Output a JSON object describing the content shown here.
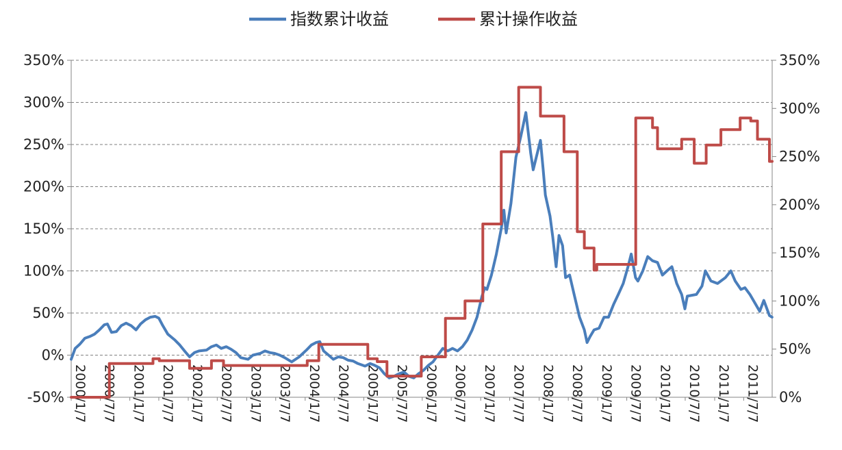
{
  "chart_data": {
    "type": "line",
    "title": "",
    "colors": {
      "index": "#4a7ebb",
      "operation": "#be4b48"
    },
    "legend": {
      "position": "top",
      "entries": [
        "指数累计收益",
        "累计操作收益"
      ]
    },
    "grid": {
      "horizontal": true,
      "style": "dashed"
    },
    "y_left": {
      "ylim": [
        -0.5,
        3.5
      ],
      "ticks": [
        -0.5,
        0,
        0.5,
        1,
        1.5,
        2,
        2.5,
        3,
        3.5
      ],
      "tick_labels": [
        "-50%",
        "0%",
        "50%",
        "100%",
        "150%",
        "200%",
        "250%",
        "300%",
        "350%"
      ]
    },
    "y_right": {
      "ylim": [
        0,
        3.5
      ],
      "ticks": [
        0,
        0.5,
        1,
        1.5,
        2,
        2.5,
        3,
        3.5
      ],
      "tick_labels": [
        "0%",
        "50%",
        "100%",
        "150%",
        "200%",
        "250%",
        "300%",
        "350%"
      ]
    },
    "x_axis": {
      "xlim": [
        "2000-01-07",
        "2012-01-01"
      ],
      "tick_dates": [
        "2000-01-07",
        "2000-07-07",
        "2001-01-07",
        "2001-07-07",
        "2002-01-07",
        "2002-07-07",
        "2003-01-07",
        "2003-07-07",
        "2004-01-07",
        "2004-07-07",
        "2005-01-07",
        "2005-07-07",
        "2006-01-07",
        "2006-07-07",
        "2007-01-07",
        "2007-07-07",
        "2008-01-07",
        "2008-07-07",
        "2009-01-07",
        "2009-07-07",
        "2010-01-07",
        "2010-07-07",
        "2011-01-07",
        "2011-07-07"
      ],
      "tick_labels": [
        "2000/1/7",
        "2000/7/7",
        "2001/1/7",
        "2001/7/7",
        "2002/1/7",
        "2002/7/7",
        "2003/1/7",
        "2003/7/7",
        "2004/1/7",
        "2004/7/7",
        "2005/1/7",
        "2005/7/7",
        "2006/1/7",
        "2006/7/7",
        "2007/1/7",
        "2007/7/7",
        "2008/1/7",
        "2008/7/7",
        "2009/1/7",
        "2009/7/7",
        "2010/1/7",
        "2010/7/7",
        "2011/1/7",
        "2011/7/7"
      ]
    },
    "series": [
      {
        "name": "指数累计收益",
        "axis": "left",
        "points": [
          [
            "2000-01-07",
            -0.05
          ],
          [
            "2000-02-01",
            0.08
          ],
          [
            "2000-03-01",
            0.13
          ],
          [
            "2000-04-01",
            0.2
          ],
          [
            "2000-05-01",
            0.22
          ],
          [
            "2000-06-01",
            0.25
          ],
          [
            "2000-07-01",
            0.3
          ],
          [
            "2000-08-01",
            0.36
          ],
          [
            "2000-08-20",
            0.37
          ],
          [
            "2000-09-15",
            0.27
          ],
          [
            "2000-10-15",
            0.28
          ],
          [
            "2000-11-15",
            0.35
          ],
          [
            "2000-12-15",
            0.38
          ],
          [
            "2001-01-15",
            0.35
          ],
          [
            "2001-02-15",
            0.3
          ],
          [
            "2001-03-15",
            0.37
          ],
          [
            "2001-04-15",
            0.42
          ],
          [
            "2001-05-15",
            0.45
          ],
          [
            "2001-06-15",
            0.46
          ],
          [
            "2001-07-07",
            0.44
          ],
          [
            "2001-08-01",
            0.35
          ],
          [
            "2001-09-01",
            0.25
          ],
          [
            "2001-10-15",
            0.18
          ],
          [
            "2001-11-15",
            0.12
          ],
          [
            "2001-12-15",
            0.05
          ],
          [
            "2002-01-15",
            -0.02
          ],
          [
            "2002-02-15",
            0.03
          ],
          [
            "2002-03-15",
            0.05
          ],
          [
            "2002-05-01",
            0.06
          ],
          [
            "2002-06-01",
            0.1
          ],
          [
            "2002-07-01",
            0.12
          ],
          [
            "2002-08-01",
            0.08
          ],
          [
            "2002-09-01",
            0.1
          ],
          [
            "2002-10-01",
            0.07
          ],
          [
            "2002-11-01",
            0.03
          ],
          [
            "2002-12-01",
            -0.03
          ],
          [
            "2003-01-15",
            -0.05
          ],
          [
            "2003-02-15",
            0.0
          ],
          [
            "2003-04-01",
            0.02
          ],
          [
            "2003-05-01",
            0.05
          ],
          [
            "2003-06-01",
            0.03
          ],
          [
            "2003-07-01",
            0.02
          ],
          [
            "2003-08-01",
            0.0
          ],
          [
            "2003-09-01",
            -0.03
          ],
          [
            "2003-10-15",
            -0.08
          ],
          [
            "2003-12-01",
            -0.02
          ],
          [
            "2004-01-15",
            0.06
          ],
          [
            "2004-02-15",
            0.12
          ],
          [
            "2004-03-15",
            0.15
          ],
          [
            "2004-04-07",
            0.16
          ],
          [
            "2004-05-01",
            0.05
          ],
          [
            "2004-06-01",
            0.0
          ],
          [
            "2004-07-01",
            -0.05
          ],
          [
            "2004-08-01",
            -0.02
          ],
          [
            "2004-09-01",
            -0.03
          ],
          [
            "2004-10-01",
            -0.06
          ],
          [
            "2004-11-01",
            -0.07
          ],
          [
            "2004-12-01",
            -0.1
          ],
          [
            "2005-01-15",
            -0.13
          ],
          [
            "2005-02-15",
            -0.1
          ],
          [
            "2005-03-15",
            -0.12
          ],
          [
            "2005-04-15",
            -0.15
          ],
          [
            "2005-05-15",
            -0.22
          ],
          [
            "2005-06-15",
            -0.27
          ],
          [
            "2005-07-15",
            -0.25
          ],
          [
            "2005-08-15",
            -0.22
          ],
          [
            "2005-09-15",
            -0.2
          ],
          [
            "2005-10-15",
            -0.25
          ],
          [
            "2005-11-15",
            -0.27
          ],
          [
            "2005-12-15",
            -0.22
          ],
          [
            "2006-01-15",
            -0.18
          ],
          [
            "2006-02-15",
            -0.12
          ],
          [
            "2006-03-15",
            -0.08
          ],
          [
            "2006-04-15",
            0.0
          ],
          [
            "2006-05-15",
            0.08
          ],
          [
            "2006-06-15",
            0.05
          ],
          [
            "2006-07-15",
            0.08
          ],
          [
            "2006-08-15",
            0.05
          ],
          [
            "2006-09-15",
            0.1
          ],
          [
            "2006-10-15",
            0.18
          ],
          [
            "2006-11-15",
            0.3
          ],
          [
            "2006-12-15",
            0.45
          ],
          [
            "2007-01-15",
            0.7
          ],
          [
            "2007-02-01",
            0.8
          ],
          [
            "2007-02-15",
            0.78
          ],
          [
            "2007-03-15",
            0.95
          ],
          [
            "2007-04-15",
            1.2
          ],
          [
            "2007-05-15",
            1.5
          ],
          [
            "2007-06-01",
            1.72
          ],
          [
            "2007-06-15",
            1.45
          ],
          [
            "2007-07-15",
            1.8
          ],
          [
            "2007-08-15",
            2.35
          ],
          [
            "2007-09-15",
            2.6
          ],
          [
            "2007-10-16",
            2.88
          ],
          [
            "2007-11-15",
            2.4
          ],
          [
            "2007-12-01",
            2.2
          ],
          [
            "2008-01-15",
            2.55
          ],
          [
            "2008-02-01",
            2.2
          ],
          [
            "2008-02-15",
            1.9
          ],
          [
            "2008-03-15",
            1.65
          ],
          [
            "2008-04-01",
            1.4
          ],
          [
            "2008-04-22",
            1.05
          ],
          [
            "2008-05-10",
            1.42
          ],
          [
            "2008-06-01",
            1.3
          ],
          [
            "2008-06-20",
            0.92
          ],
          [
            "2008-07-15",
            0.95
          ],
          [
            "2008-08-15",
            0.7
          ],
          [
            "2008-09-15",
            0.45
          ],
          [
            "2008-10-15",
            0.3
          ],
          [
            "2008-11-01",
            0.15
          ],
          [
            "2008-11-20",
            0.22
          ],
          [
            "2008-12-15",
            0.3
          ],
          [
            "2009-01-15",
            0.32
          ],
          [
            "2009-02-15",
            0.45
          ],
          [
            "2009-03-15",
            0.45
          ],
          [
            "2009-04-15",
            0.6
          ],
          [
            "2009-05-15",
            0.72
          ],
          [
            "2009-06-15",
            0.85
          ],
          [
            "2009-07-15",
            1.05
          ],
          [
            "2009-08-04",
            1.2
          ],
          [
            "2009-08-31",
            0.92
          ],
          [
            "2009-09-15",
            0.88
          ],
          [
            "2009-10-15",
            1.0
          ],
          [
            "2009-11-15",
            1.17
          ],
          [
            "2009-12-15",
            1.12
          ],
          [
            "2010-01-15",
            1.1
          ],
          [
            "2010-02-15",
            0.95
          ],
          [
            "2010-03-15",
            1.0
          ],
          [
            "2010-04-15",
            1.05
          ],
          [
            "2010-05-15",
            0.85
          ],
          [
            "2010-06-15",
            0.72
          ],
          [
            "2010-07-05",
            0.55
          ],
          [
            "2010-07-20",
            0.7
          ],
          [
            "2010-09-15",
            0.72
          ],
          [
            "2010-10-20",
            0.82
          ],
          [
            "2010-11-10",
            1.0
          ],
          [
            "2010-12-15",
            0.88
          ],
          [
            "2011-01-25",
            0.85
          ],
          [
            "2011-03-15",
            0.92
          ],
          [
            "2011-04-18",
            1.0
          ],
          [
            "2011-05-15",
            0.88
          ],
          [
            "2011-06-20",
            0.78
          ],
          [
            "2011-07-15",
            0.8
          ],
          [
            "2011-08-15",
            0.72
          ],
          [
            "2011-09-15",
            0.62
          ],
          [
            "2011-10-15",
            0.52
          ],
          [
            "2011-11-10",
            0.65
          ],
          [
            "2011-12-15",
            0.47
          ],
          [
            "2011-12-31",
            0.45
          ]
        ]
      },
      {
        "name": "累计操作收益",
        "axis": "right",
        "step": true,
        "points": [
          [
            "2000-01-07",
            0.0
          ],
          [
            "2000-09-01",
            0.35
          ],
          [
            "2001-06-01",
            0.4
          ],
          [
            "2001-07-10",
            0.38
          ],
          [
            "2002-01-15",
            0.3
          ],
          [
            "2002-06-01",
            0.38
          ],
          [
            "2002-08-15",
            0.33
          ],
          [
            "2004-01-20",
            0.38
          ],
          [
            "2004-04-01",
            0.55
          ],
          [
            "2005-02-01",
            0.4
          ],
          [
            "2005-04-01",
            0.37
          ],
          [
            "2005-06-01",
            0.22
          ],
          [
            "2006-01-01",
            0.42
          ],
          [
            "2006-06-01",
            0.82
          ],
          [
            "2006-10-01",
            1.0
          ],
          [
            "2007-01-20",
            1.8
          ],
          [
            "2007-05-15",
            2.55
          ],
          [
            "2007-09-01",
            3.22
          ],
          [
            "2008-01-15",
            2.92
          ],
          [
            "2008-06-10",
            2.55
          ],
          [
            "2008-09-01",
            1.72
          ],
          [
            "2008-10-15",
            1.55
          ],
          [
            "2008-12-15",
            1.32
          ],
          [
            "2009-01-01",
            1.38
          ],
          [
            "2009-09-01",
            2.9
          ],
          [
            "2009-12-15",
            2.8
          ],
          [
            "2010-01-15",
            2.58
          ],
          [
            "2010-06-15",
            2.68
          ],
          [
            "2010-09-01",
            2.43
          ],
          [
            "2010-11-15",
            2.62
          ],
          [
            "2011-02-15",
            2.78
          ],
          [
            "2011-06-15",
            2.9
          ],
          [
            "2011-08-20",
            2.87
          ],
          [
            "2011-10-01",
            2.68
          ],
          [
            "2011-12-15",
            2.45
          ],
          [
            "2012-01-01",
            2.45
          ]
        ]
      }
    ]
  }
}
